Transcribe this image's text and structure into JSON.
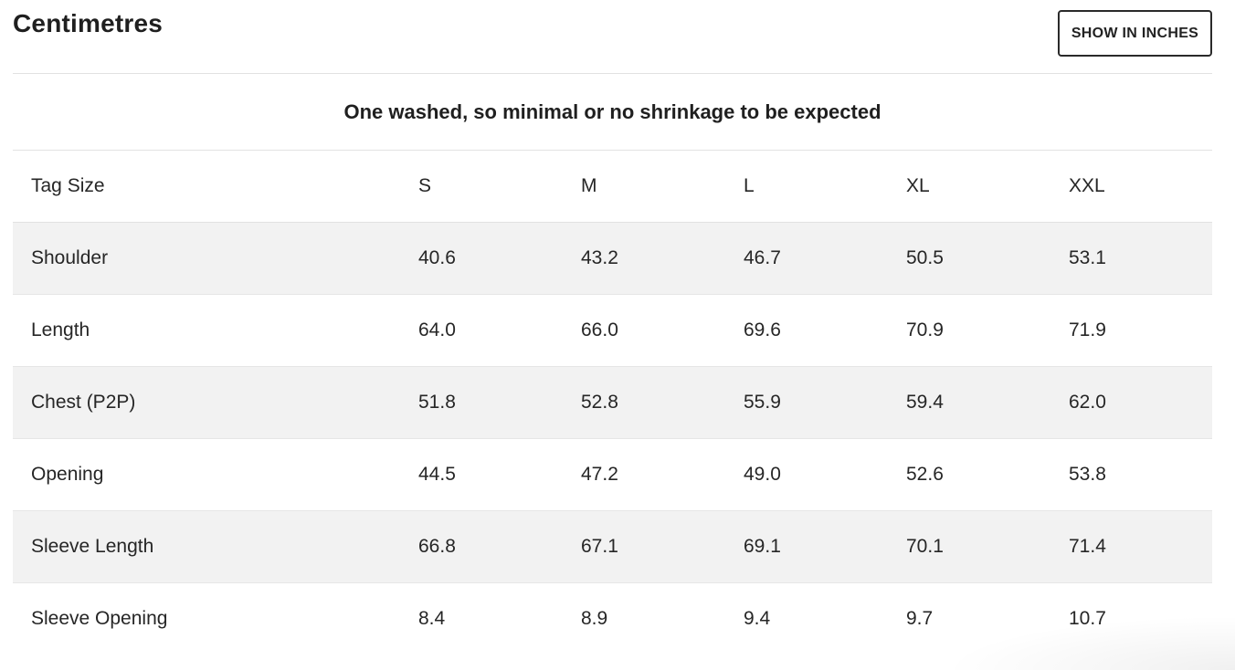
{
  "header": {
    "title": "Centimetres",
    "toggle_label": "SHOW IN INCHES"
  },
  "note": "One washed, so minimal or no shrinkage to be expected",
  "table": {
    "columns": [
      "Tag Size",
      "S",
      "M",
      "L",
      "XL",
      "XXL"
    ],
    "rows": [
      {
        "label": "Shoulder",
        "values": [
          "40.6",
          "43.2",
          "46.7",
          "50.5",
          "53.1"
        ]
      },
      {
        "label": "Length",
        "values": [
          "64.0",
          "66.0",
          "69.6",
          "70.9",
          "71.9"
        ]
      },
      {
        "label": "Chest (P2P)",
        "values": [
          "51.8",
          "52.8",
          "55.9",
          "59.4",
          "62.0"
        ]
      },
      {
        "label": "Opening",
        "values": [
          "44.5",
          "47.2",
          "49.0",
          "52.6",
          "53.8"
        ]
      },
      {
        "label": "Sleeve Length",
        "values": [
          "66.8",
          "67.1",
          "69.1",
          "70.1",
          "71.4"
        ]
      },
      {
        "label": "Sleeve Opening",
        "values": [
          "8.4",
          "8.9",
          "9.4",
          "9.7",
          "10.7"
        ]
      }
    ]
  }
}
